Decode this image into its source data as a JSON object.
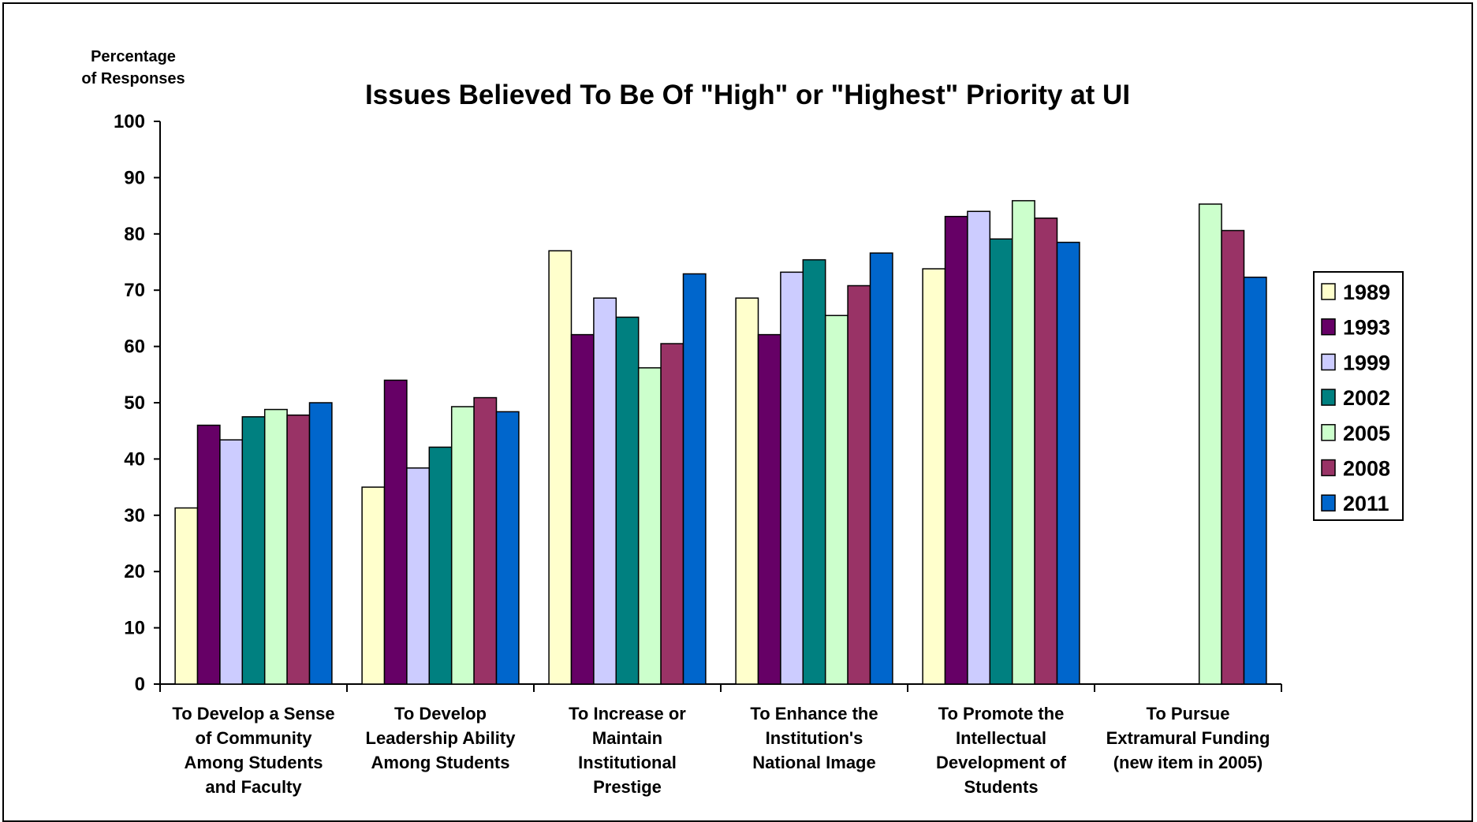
{
  "chart_data": {
    "type": "bar",
    "title": "Issues Believed To Be Of \"High\" or \"Highest\" Priority at UI",
    "ylabel": [
      "Percentage",
      "of Responses"
    ],
    "xlabel": "",
    "ylim": [
      0,
      100
    ],
    "yticks": [
      0,
      10,
      20,
      30,
      40,
      50,
      60,
      70,
      80,
      90,
      100
    ],
    "legend_position": "right",
    "categories": [
      [
        "To Develop a Sense",
        "of Community",
        "Among Students",
        "and Faculty"
      ],
      [
        "To Develop",
        "Leadership Ability",
        "Among Students"
      ],
      [
        "To Increase or",
        "Maintain",
        "Institutional",
        "Prestige"
      ],
      [
        "To Enhance the",
        "Institution's",
        "National Image"
      ],
      [
        "To Promote the",
        "Intellectual",
        "Development of",
        "Students"
      ],
      [
        "To Pursue",
        "Extramural Funding",
        "(new item in 2005)"
      ]
    ],
    "series": [
      {
        "name": "1989",
        "color": "#FFFFCC",
        "values": [
          31.3,
          35.0,
          77.0,
          68.6,
          73.8,
          null
        ]
      },
      {
        "name": "1993",
        "color": "#660066",
        "values": [
          46.0,
          54.0,
          62.1,
          62.1,
          83.1,
          null
        ]
      },
      {
        "name": "1999",
        "color": "#CCCCFF",
        "values": [
          43.4,
          38.4,
          68.6,
          73.2,
          84.0,
          null
        ]
      },
      {
        "name": "2002",
        "color": "#008080",
        "values": [
          47.5,
          42.1,
          65.2,
          75.4,
          79.1,
          null
        ]
      },
      {
        "name": "2005",
        "color": "#CCFFCC",
        "values": [
          48.8,
          49.3,
          56.2,
          65.5,
          85.9,
          85.3
        ]
      },
      {
        "name": "2008",
        "color": "#993366",
        "values": [
          47.8,
          50.9,
          60.5,
          70.8,
          82.8,
          80.6
        ]
      },
      {
        "name": "2011",
        "color": "#0066CC",
        "values": [
          50.0,
          48.4,
          72.9,
          76.6,
          78.5,
          72.3
        ]
      }
    ]
  }
}
